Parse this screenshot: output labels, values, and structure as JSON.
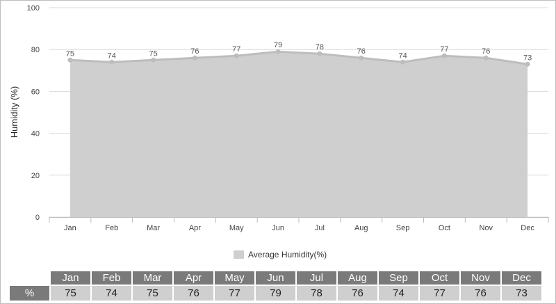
{
  "chart_data": {
    "type": "area",
    "categories": [
      "Jan",
      "Feb",
      "Mar",
      "Apr",
      "May",
      "Jun",
      "Jul",
      "Aug",
      "Sep",
      "Oct",
      "Nov",
      "Dec"
    ],
    "series": [
      {
        "name": "Average Humidity(%)",
        "values": [
          75,
          74,
          75,
          76,
          77,
          79,
          78,
          76,
          74,
          77,
          76,
          73
        ]
      }
    ],
    "title": "",
    "xlabel": "",
    "ylabel": "Humidity (%)",
    "ylim": [
      0,
      100
    ],
    "yticks": [
      0,
      20,
      40,
      60,
      80,
      100
    ],
    "grid": true,
    "legend_position": "bottom"
  },
  "colors": {
    "area_fill": "#cfcfcf",
    "area_line": "#bdbdbd",
    "grid": "#d9d9d9",
    "table_header": "#7a7a7a",
    "table_cell": "#cfcfcf"
  },
  "legend": {
    "label": "Average Humidity(%)"
  },
  "table": {
    "row_label": "%",
    "headers": [
      "Jan",
      "Feb",
      "Mar",
      "Apr",
      "May",
      "Jun",
      "Jul",
      "Aug",
      "Sep",
      "Oct",
      "Nov",
      "Dec"
    ],
    "values": [
      "75",
      "74",
      "75",
      "76",
      "77",
      "79",
      "78",
      "76",
      "74",
      "77",
      "76",
      "73"
    ]
  }
}
